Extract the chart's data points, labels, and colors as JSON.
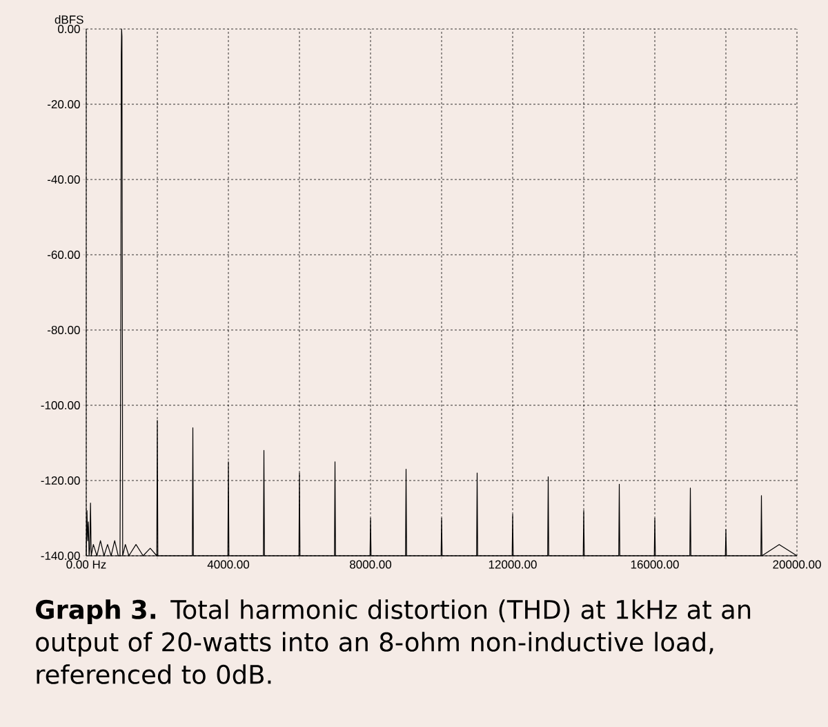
{
  "chart_data": {
    "type": "line",
    "title": "**Graph 3.** Total harmonic distortion (THD) at 1kHz at an output of 20-watts into an 8-ohm non-inductive load, referenced to 0dB.",
    "ylabel": "dBFS",
    "x": [
      0,
      20,
      40,
      60,
      80,
      100,
      120,
      140,
      200,
      300,
      400,
      500,
      600,
      700,
      800,
      900,
      950,
      975,
      985,
      995,
      1005,
      1015,
      1025,
      1100,
      1200,
      1400,
      1600,
      1800,
      1985,
      2000,
      2015,
      2985,
      3000,
      3015,
      3985,
      4000,
      4015,
      4985,
      5000,
      5015,
      5985,
      6000,
      6015,
      6985,
      7000,
      7015,
      7985,
      8000,
      8015,
      8985,
      9000,
      9015,
      9985,
      10000,
      10015,
      10985,
      11000,
      11015,
      11985,
      12000,
      12015,
      12985,
      13000,
      13015,
      13985,
      14000,
      14015,
      14985,
      15000,
      15015,
      15985,
      16000,
      16015,
      16985,
      17000,
      17015,
      17985,
      18000,
      18015,
      18985,
      19000,
      19015,
      19500,
      20000
    ],
    "values": [
      -140,
      -128,
      -136,
      -131,
      -140,
      -138,
      -126,
      -140,
      -137,
      -140,
      -136,
      -140,
      -137,
      -140,
      -136,
      -140,
      -140,
      -72,
      -7,
      0,
      -2,
      -65,
      -140,
      -137,
      -140,
      -137,
      -140,
      -138,
      -140,
      -104,
      -140,
      -140,
      -106,
      -140,
      -140,
      -115,
      -140,
      -140,
      -112,
      -140,
      -140,
      -118,
      -140,
      -140,
      -115,
      -140,
      -140,
      -130,
      -140,
      -140,
      -117,
      -140,
      -140,
      -130,
      -140,
      -140,
      -118,
      -140,
      -140,
      -129,
      -140,
      -140,
      -119,
      -140,
      -140,
      -128,
      -140,
      -140,
      -121,
      -140,
      -140,
      -130,
      -140,
      -140,
      -122,
      -140,
      -140,
      -133,
      -140,
      -140,
      -124,
      -140,
      -137,
      -140
    ],
    "color": "#000000",
    "xlim": [
      0,
      20000
    ],
    "ylim": [
      -140,
      0
    ],
    "xticks": [
      {
        "value": 0,
        "label": "0.00 Hz"
      },
      {
        "value": 2000,
        "label": null
      },
      {
        "value": 4000,
        "label": "4000.00"
      },
      {
        "value": 6000,
        "label": null
      },
      {
        "value": 8000,
        "label": "8000.00"
      },
      {
        "value": 10000,
        "label": null
      },
      {
        "value": 12000,
        "label": "12000.00"
      },
      {
        "value": 14000,
        "label": null
      },
      {
        "value": 16000,
        "label": "16000.00"
      },
      {
        "value": 18000,
        "label": null
      },
      {
        "value": 20000,
        "label": "20000.00"
      }
    ],
    "yticks": [
      {
        "value": 0,
        "label": "0.00"
      },
      {
        "value": -20,
        "label": "-20.00"
      },
      {
        "value": -40,
        "label": "-40.00"
      },
      {
        "value": -60,
        "label": "-60.00"
      },
      {
        "value": -80,
        "label": "-80.00"
      },
      {
        "value": -100,
        "label": "-100.00"
      },
      {
        "value": -120,
        "label": "-120.00"
      },
      {
        "value": -140,
        "label": "-140.00"
      }
    ],
    "grid": true
  }
}
